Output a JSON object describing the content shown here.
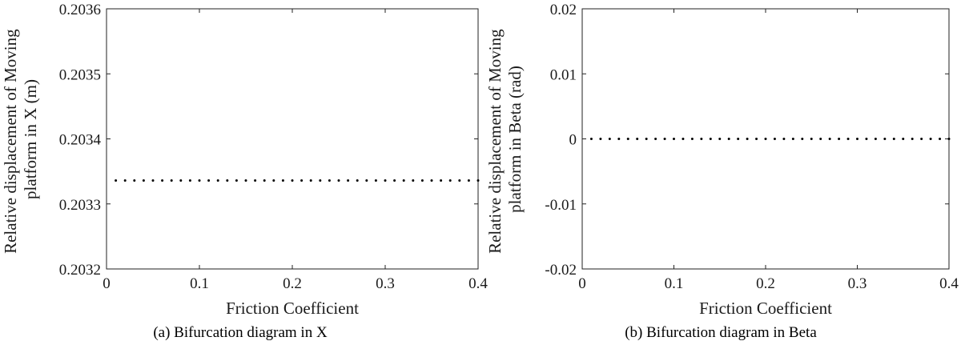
{
  "chart_data": [
    {
      "type": "scatter",
      "caption": "(a) Bifurcation diagram in X",
      "xlabel": "Friction Coefficient",
      "ylabel_lines": [
        "Relative displacement of Moving",
        "platform in X (m)"
      ],
      "xlim": [
        0,
        0.4
      ],
      "ylim": [
        0.2032,
        0.2036
      ],
      "x_ticks": [
        0,
        0.1,
        0.2,
        0.3,
        0.4
      ],
      "x_tick_labels": [
        "0",
        "0.1",
        "0.2",
        "0.3",
        "0.4"
      ],
      "y_ticks": [
        0.2032,
        0.2033,
        0.2034,
        0.2035,
        0.2036
      ],
      "y_tick_labels": [
        "0.2032",
        "0.2033",
        "0.2034",
        "0.2035",
        "0.2036"
      ],
      "grid": false,
      "marker_color": "#000000",
      "points": {
        "x_start": 0.01,
        "x_end": 0.4,
        "x_step": 0.01,
        "y": 0.203336
      }
    },
    {
      "type": "scatter",
      "caption": "(b) Bifurcation diagram in Beta",
      "xlabel": "Friction Coefficient",
      "ylabel_lines": [
        "Relative displacement of Moving",
        "platform in Beta (rad)"
      ],
      "xlim": [
        0,
        0.4
      ],
      "ylim": [
        -0.02,
        0.02
      ],
      "x_ticks": [
        0,
        0.1,
        0.2,
        0.3,
        0.4
      ],
      "x_tick_labels": [
        "0",
        "0.1",
        "0.2",
        "0.3",
        "0.4"
      ],
      "y_ticks": [
        -0.02,
        -0.01,
        0,
        0.01,
        0.02
      ],
      "y_tick_labels": [
        "-0.02",
        "-0.01",
        "0",
        "0.01",
        "0.02"
      ],
      "grid": false,
      "marker_color": "#000000",
      "points": {
        "x_start": 0.01,
        "x_end": 0.4,
        "x_step": 0.01,
        "y": 0
      }
    }
  ]
}
